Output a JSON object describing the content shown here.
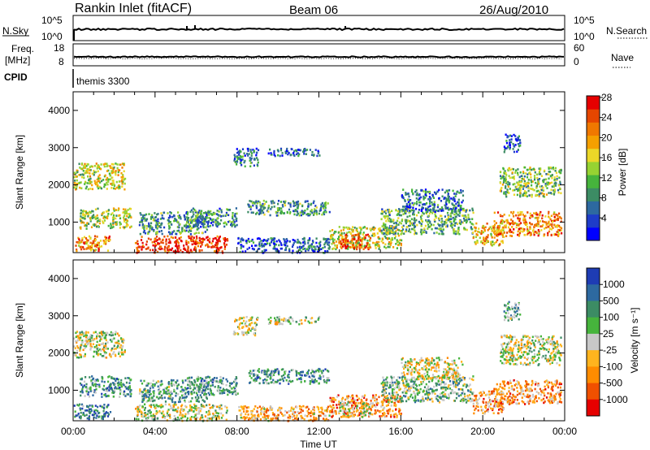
{
  "header": {
    "station": "Rankin Inlet (fitACF)",
    "beam": "Beam 06",
    "date": "26/Aug/2010"
  },
  "strips": {
    "nsky_label": "N.Sky",
    "nsearch_label": "N.Search",
    "nsky_ticks": [
      "10^5",
      "10^0"
    ],
    "nsearch_ticks": [
      "10^5",
      "10^0"
    ],
    "freq_label_top": "Freq.",
    "freq_label_unit": "[MHz]",
    "freq_ticks": [
      "18",
      "8"
    ],
    "nave_label": "Nave",
    "nave_ticks": [
      "60",
      "0"
    ],
    "cpid_label": "CPID",
    "cpid_value": "themis 3300"
  },
  "axes": {
    "x_ticks": [
      "00:00",
      "04:00",
      "08:00",
      "12:00",
      "16:00",
      "20:00",
      "00:00"
    ],
    "x_label": "Time UT",
    "y_label": "Slant Range [km]",
    "y_ticks": [
      "1000",
      "2000",
      "3000",
      "4000"
    ]
  },
  "colorbars": {
    "power": {
      "label": "Power [dB]",
      "ticks": [
        "4",
        "8",
        "12",
        "16",
        "20",
        "24",
        "28"
      ],
      "colors": [
        "#0000ff",
        "#1e3cc8",
        "#2d69a0",
        "#3c8c64",
        "#46b43c",
        "#96d232",
        "#ebd728",
        "#f5a000",
        "#f07800",
        "#e64600",
        "#e60000"
      ]
    },
    "velocity": {
      "label": "Velocity [m s⁻¹]",
      "ticks": [
        "1000",
        "500",
        "100",
        "25",
        "-25",
        "-100",
        "-500",
        "-1000"
      ],
      "colors": [
        "#1e3cb4",
        "#2d69a0",
        "#3c8c64",
        "#46b43c",
        "#c8c8c8",
        "#ffb41e",
        "#ff8c00",
        "#f05000",
        "#e60000"
      ]
    }
  },
  "chart_data": [
    {
      "type": "heatmap",
      "panel": "power",
      "x_range_hours": [
        0,
        24
      ],
      "y_range_km": [
        180,
        4500
      ],
      "x_ticks": [
        "00:00",
        "04:00",
        "08:00",
        "12:00",
        "16:00",
        "20:00",
        "00:00"
      ],
      "y_ticks": [
        1000,
        2000,
        3000,
        4000
      ],
      "ylabel": "Slant Range [km]",
      "colorbar_label": "Power [dB]",
      "colorbar_ticks": [
        4,
        8,
        12,
        16,
        20,
        24,
        28
      ],
      "echo_regions": [
        {
          "t": [
            0.0,
            2.5
          ],
          "r": [
            1900,
            2600
          ],
          "level": 0.55
        },
        {
          "t": [
            0.3,
            2.8
          ],
          "r": [
            850,
            1400
          ],
          "level": 0.5
        },
        {
          "t": [
            0.0,
            1.8
          ],
          "r": [
            250,
            650
          ],
          "level": 0.75
        },
        {
          "t": [
            3.0,
            7.5
          ],
          "r": [
            200,
            650
          ],
          "level": 0.92
        },
        {
          "t": [
            3.2,
            6.5
          ],
          "r": [
            700,
            1300
          ],
          "level": 0.35
        },
        {
          "t": [
            5.5,
            8.0
          ],
          "r": [
            900,
            1400
          ],
          "level": 0.3
        },
        {
          "t": [
            7.8,
            9.0
          ],
          "r": [
            2500,
            3000
          ],
          "level": 0.25
        },
        {
          "t": [
            8.5,
            12.5
          ],
          "r": [
            1200,
            1600
          ],
          "level": 0.35
        },
        {
          "t": [
            9.5,
            12.0
          ],
          "r": [
            2800,
            3000
          ],
          "level": 0.2
        },
        {
          "t": [
            8.0,
            12.5
          ],
          "r": [
            200,
            600
          ],
          "level": 0.2
        },
        {
          "t": [
            12.5,
            16.0
          ],
          "r": [
            300,
            900
          ],
          "level": 0.55
        },
        {
          "t": [
            13.0,
            14.5
          ],
          "r": [
            300,
            700
          ],
          "level": 0.85
        },
        {
          "t": [
            15.0,
            19.5
          ],
          "r": [
            700,
            1400
          ],
          "level": 0.4
        },
        {
          "t": [
            16.0,
            19.0
          ],
          "r": [
            1300,
            1900
          ],
          "level": 0.25
        },
        {
          "t": [
            19.5,
            21.0
          ],
          "r": [
            400,
            1000
          ],
          "level": 0.65
        },
        {
          "t": [
            20.5,
            23.8
          ],
          "r": [
            650,
            1300
          ],
          "level": 0.75
        },
        {
          "t": [
            20.8,
            23.8
          ],
          "r": [
            1700,
            2500
          ],
          "level": 0.45
        },
        {
          "t": [
            21.0,
            21.8
          ],
          "r": [
            2900,
            3400
          ],
          "level": 0.2
        }
      ]
    },
    {
      "type": "heatmap",
      "panel": "velocity",
      "x_range_hours": [
        0,
        24
      ],
      "y_range_km": [
        180,
        4500
      ],
      "x_ticks": [
        "00:00",
        "04:00",
        "08:00",
        "12:00",
        "16:00",
        "20:00",
        "00:00"
      ],
      "y_ticks": [
        1000,
        2000,
        3000,
        4000
      ],
      "xlabel": "Time UT",
      "ylabel": "Slant Range [km]",
      "colorbar_label": "Velocity [m s⁻¹]",
      "colorbar_ticks": [
        1000,
        500,
        100,
        25,
        -25,
        -100,
        -500,
        -1000
      ],
      "echo_regions": [
        {
          "t": [
            0.0,
            2.5
          ],
          "r": [
            1900,
            2600
          ],
          "level": 0.5
        },
        {
          "t": [
            0.3,
            2.8
          ],
          "r": [
            850,
            1400
          ],
          "level": 0.3
        },
        {
          "t": [
            0.0,
            1.8
          ],
          "r": [
            250,
            650
          ],
          "level": 0.25
        },
        {
          "t": [
            3.0,
            7.5
          ],
          "r": [
            200,
            650
          ],
          "level": 0.5
        },
        {
          "t": [
            3.2,
            6.5
          ],
          "r": [
            700,
            1300
          ],
          "level": 0.35
        },
        {
          "t": [
            5.5,
            8.0
          ],
          "r": [
            900,
            1400
          ],
          "level": 0.3
        },
        {
          "t": [
            7.8,
            9.0
          ],
          "r": [
            2500,
            3000
          ],
          "level": 0.5
        },
        {
          "t": [
            8.5,
            12.5
          ],
          "r": [
            1200,
            1600
          ],
          "level": 0.3
        },
        {
          "t": [
            9.5,
            12.0
          ],
          "r": [
            2800,
            3000
          ],
          "level": 0.5
        },
        {
          "t": [
            8.0,
            12.5
          ],
          "r": [
            200,
            600
          ],
          "level": 0.65
        },
        {
          "t": [
            12.5,
            16.0
          ],
          "r": [
            300,
            900
          ],
          "level": 0.72
        },
        {
          "t": [
            13.0,
            14.5
          ],
          "r": [
            300,
            700
          ],
          "level": 0.5
        },
        {
          "t": [
            15.0,
            19.5
          ],
          "r": [
            700,
            1400
          ],
          "level": 0.4
        },
        {
          "t": [
            16.0,
            19.0
          ],
          "r": [
            1300,
            1900
          ],
          "level": 0.55
        },
        {
          "t": [
            19.5,
            21.0
          ],
          "r": [
            400,
            1000
          ],
          "level": 0.7
        },
        {
          "t": [
            20.5,
            23.8
          ],
          "r": [
            650,
            1300
          ],
          "level": 0.68
        },
        {
          "t": [
            20.8,
            23.8
          ],
          "r": [
            1700,
            2500
          ],
          "level": 0.5
        },
        {
          "t": [
            21.0,
            21.8
          ],
          "r": [
            2900,
            3400
          ],
          "level": 0.35
        }
      ]
    }
  ]
}
